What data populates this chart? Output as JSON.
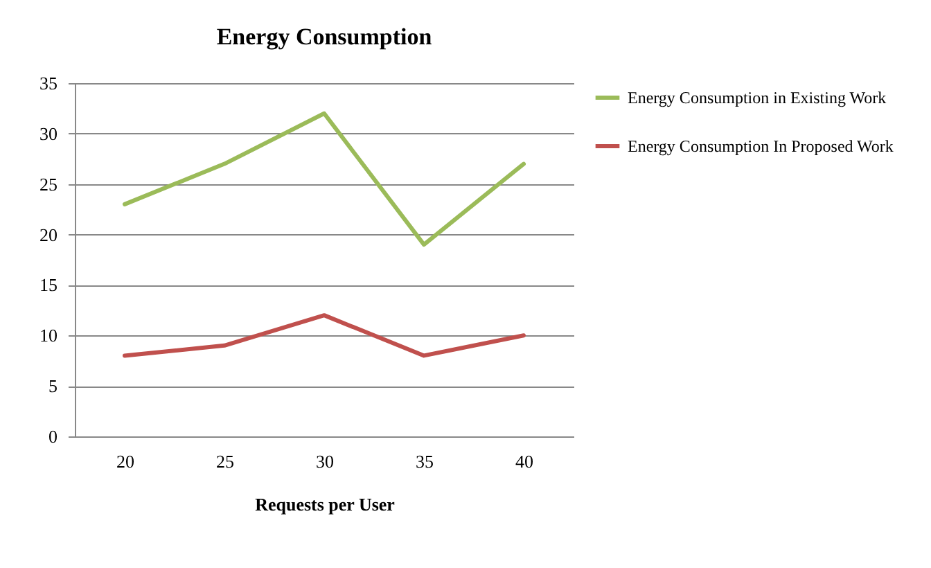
{
  "chart_data": {
    "type": "line",
    "title": "Energy Consumption",
    "xlabel": "Requests per User",
    "categories": [
      "20",
      "25",
      "30",
      "35",
      "40"
    ],
    "series": [
      {
        "name": "Energy Consumption in Existing Work",
        "color": "#9bbb59",
        "values": [
          23,
          27,
          32,
          19,
          27
        ]
      },
      {
        "name": "Energy Consumption In Proposed Work",
        "color": "#c0504d",
        "values": [
          8,
          9,
          12,
          8,
          10
        ]
      }
    ],
    "ylim": [
      0,
      35
    ],
    "yticks": [
      0,
      5,
      10,
      15,
      20,
      25,
      30,
      35
    ],
    "grid": "y",
    "legend": "right",
    "marker": "none",
    "line_style": "solid"
  }
}
